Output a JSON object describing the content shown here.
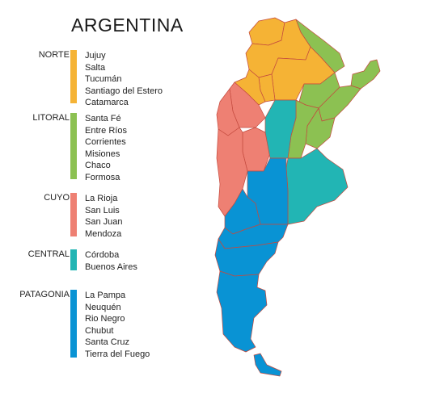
{
  "title": "ARGENTINA",
  "colors": {
    "norte": "#F5B335",
    "litoral": "#8CC152",
    "cuyo": "#EE8073",
    "central": "#22B5B4",
    "patagonia": "#0993D4"
  },
  "regions": [
    {
      "name": "NORTE",
      "color": "#F5B335",
      "provinces": [
        "Jujuy",
        "Salta",
        "Tucumán",
        "Santiago del Estero",
        "Catamarca"
      ]
    },
    {
      "name": "LITORAL",
      "color": "#8CC152",
      "provinces": [
        "Santa Fé",
        "Entre Ríos",
        "Corrientes",
        "Misiones",
        "Chaco",
        "Formosa"
      ]
    },
    {
      "name": "CUYO",
      "color": "#EE8073",
      "provinces": [
        "La Rioja",
        "San Luis",
        "San Juan",
        "Mendoza"
      ]
    },
    {
      "name": "CENTRAL",
      "color": "#22B5B4",
      "provinces": [
        "Córdoba",
        "Buenos Aires"
      ]
    },
    {
      "name": "PATAGONIA",
      "color": "#0993D4",
      "provinces": [
        "La Pampa",
        "Neuquén",
        "Rio Negro",
        "Chubut",
        "Santa Cruz",
        "Tierra del Fuego"
      ]
    }
  ]
}
